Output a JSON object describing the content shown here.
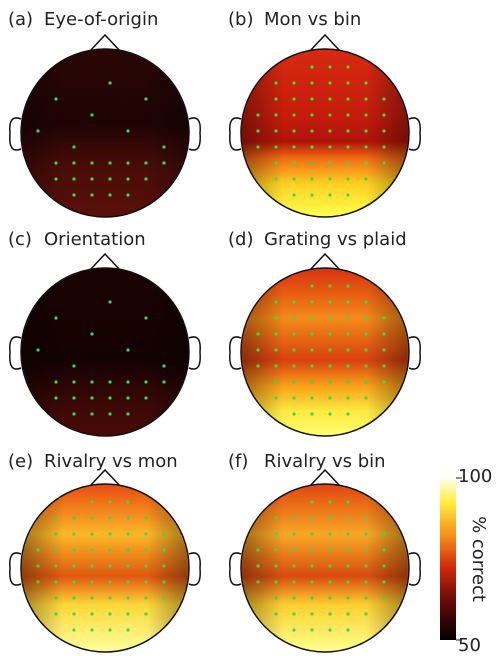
{
  "panels": [
    {
      "label": "(a)",
      "title": "Eye-of-origin"
    },
    {
      "label": "(b)",
      "title": "Mon vs bin"
    },
    {
      "label": "(c)",
      "title": "Orientation"
    },
    {
      "label": "(d)",
      "title": "Grating vs plaid"
    },
    {
      "label": "(e)",
      "title": "Rivalry vs mon"
    },
    {
      "label": "(f)",
      "title": "Rivalry vs bin"
    }
  ],
  "colorbar": {
    "label": "% correct",
    "lim": [
      50,
      100
    ],
    "ticks": [
      50,
      100
    ]
  }
}
